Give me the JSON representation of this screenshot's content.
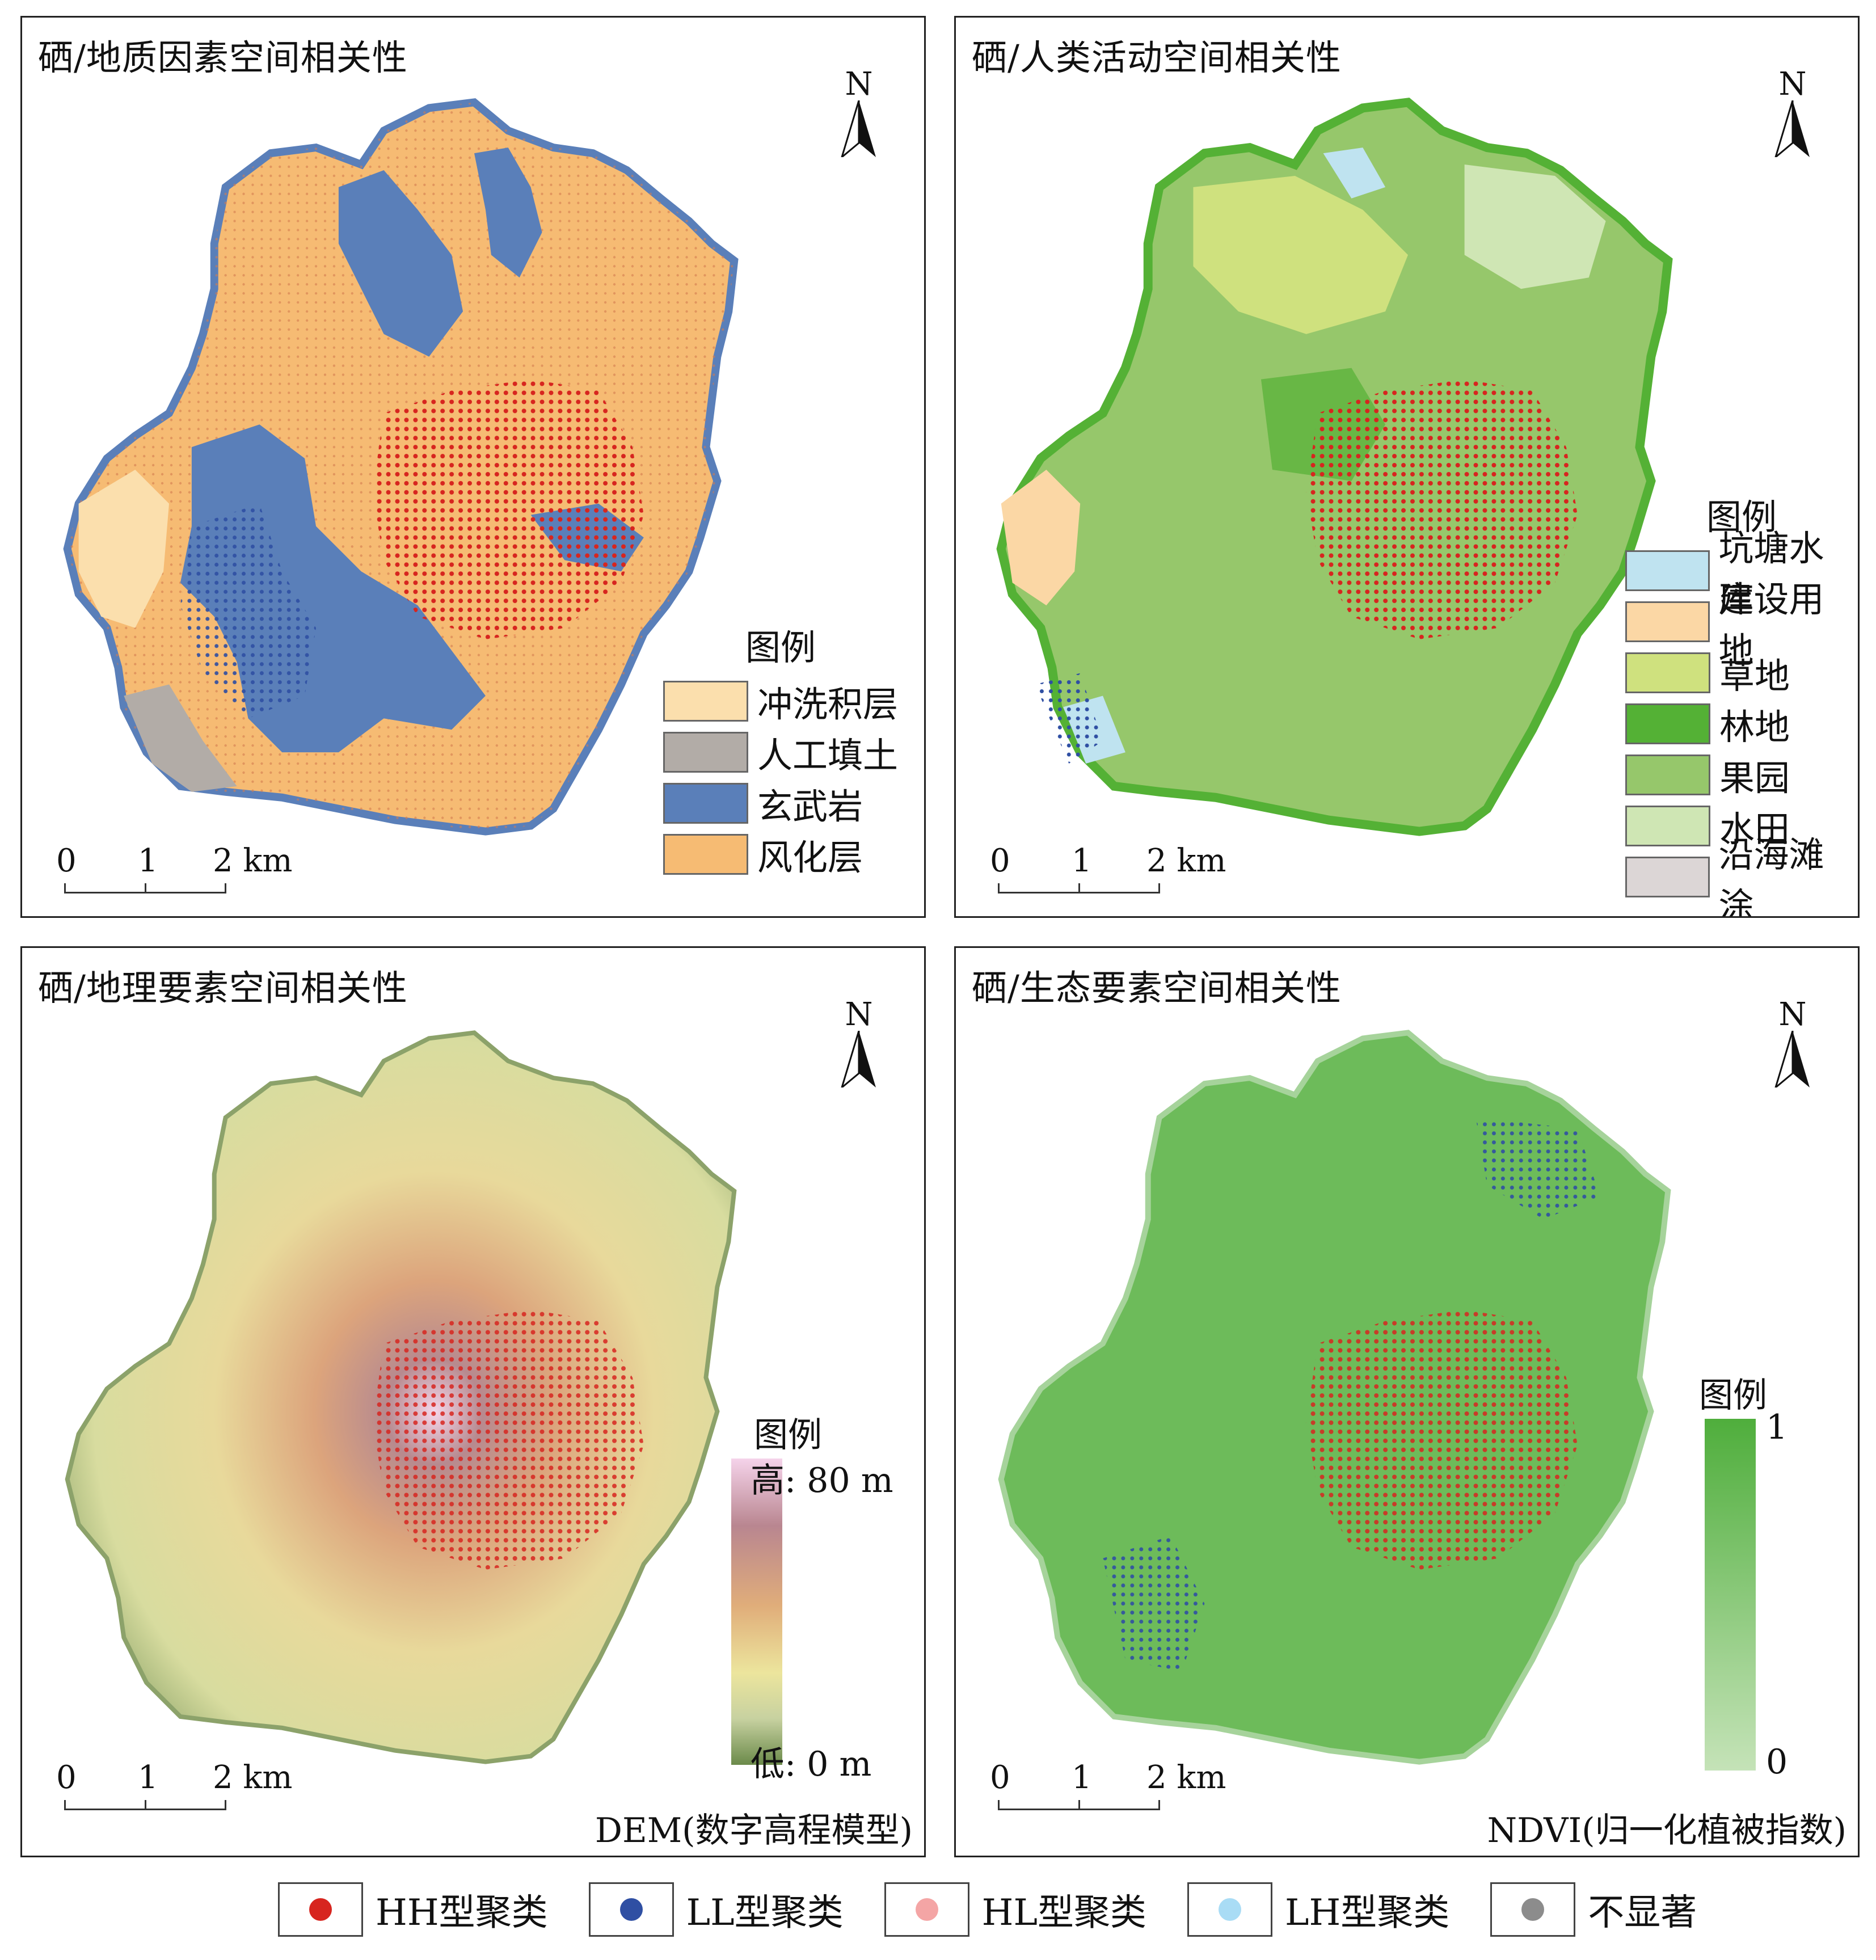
{
  "panels": [
    {
      "title": "硒/地质因素空间相关性",
      "legend_title": "图例",
      "legend": [
        {
          "label": "冲洗积层",
          "color": "#fbdfad"
        },
        {
          "label": "人工填土",
          "color": "#b2aca7"
        },
        {
          "label": "玄武岩",
          "color": "#5a7fb9"
        },
        {
          "label": "风化层",
          "color": "#f6bb73"
        }
      ]
    },
    {
      "title": "硒/人类活动空间相关性",
      "legend_title": "图例",
      "legend": [
        {
          "label": "坑塘水库",
          "color": "#bfe3f0"
        },
        {
          "label": "建设用地",
          "color": "#fbd7a5"
        },
        {
          "label": "草地",
          "color": "#cfe17e"
        },
        {
          "label": "林地",
          "color": "#54b135"
        },
        {
          "label": "果园",
          "color": "#96c76b"
        },
        {
          "label": "水田",
          "color": "#cfe6b4"
        },
        {
          "label": "沿海滩涂",
          "color": "#dcd6d6"
        }
      ]
    },
    {
      "title": "硒/地理要素空间相关性",
      "legend_title": "图例",
      "ramp_high": "高: 80 m",
      "ramp_low": "低: 0 m",
      "caption": "DEM(数字高程模型)"
    },
    {
      "title": "硒/生态要素空间相关性",
      "legend_title": "图例",
      "ramp_high": "1",
      "ramp_low": "0",
      "caption": "NDVI(归一化植被指数)"
    }
  ],
  "north_label": "N",
  "scale": {
    "l0": "0",
    "l1": "1",
    "l2": "2 km"
  },
  "clusters": [
    {
      "label": "HH型聚类",
      "color": "#d7251f"
    },
    {
      "label": "LL型聚类",
      "color": "#2f4fa3"
    },
    {
      "label": "HL型聚类",
      "color": "#f4a5a5"
    },
    {
      "label": "LH型聚类",
      "color": "#a9dcf5"
    },
    {
      "label": "不显著",
      "color": "#8c8c8c"
    }
  ]
}
